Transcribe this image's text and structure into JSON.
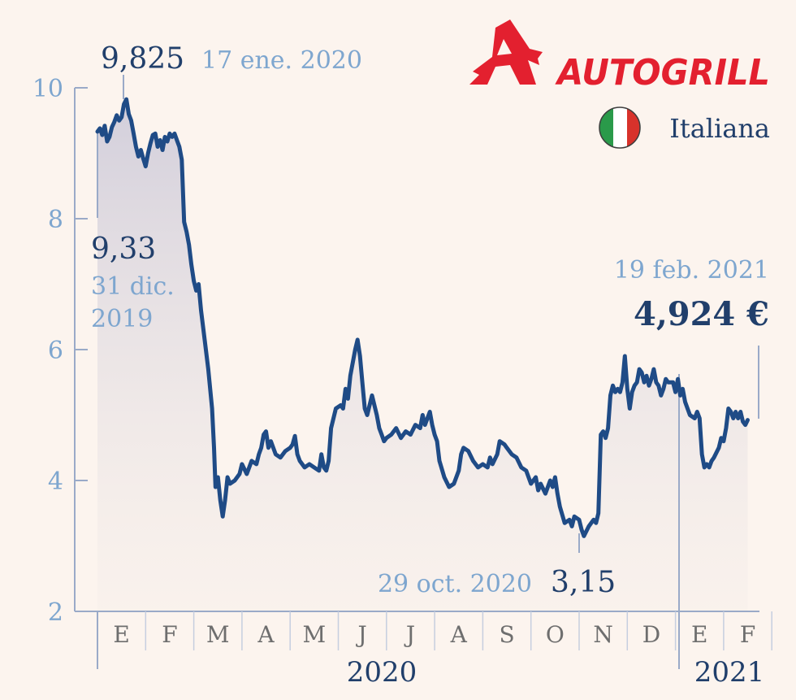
{
  "brand": {
    "name": "AUTOGRILL",
    "country": "Italiana",
    "colors": {
      "brand": "#e3202f",
      "flag": [
        "#2a9a4a",
        "#ffffff",
        "#d8322b"
      ]
    }
  },
  "colors": {
    "line": "#1f4b86",
    "axis": "#9aaac8",
    "dark_text": "#213f6b",
    "light_text": "#7ea6cf",
    "background": "#fcf4ee"
  },
  "chart_data": {
    "type": "line",
    "ylim": [
      2,
      10
    ],
    "yticks": [
      "2",
      "4",
      "6",
      "8",
      "10"
    ],
    "months": [
      "E",
      "F",
      "M",
      "A",
      "M",
      "J",
      "J",
      "A",
      "S",
      "O",
      "N",
      "D",
      "E",
      "F"
    ],
    "years": [
      {
        "label": "2020",
        "months": [
          0,
          11
        ]
      },
      {
        "label": "2021",
        "months": [
          12,
          13
        ]
      }
    ],
    "grid": false,
    "annotations": {
      "start": {
        "value": "9,33",
        "date": [
          "31 dic.",
          "2019"
        ]
      },
      "max": {
        "value": "9,825",
        "date": "17 ene. 2020"
      },
      "min": {
        "value": "3,15",
        "date": "29 oct. 2020"
      },
      "end": {
        "value": "4,924 €",
        "date": "19 feb. 2021"
      }
    },
    "series": [
      {
        "comment_units": "x = month index (0 = start of Jan 2020), y = euros",
        "points": [
          [
            0.0,
            9.33
          ],
          [
            0.05,
            9.38
          ],
          [
            0.1,
            9.28
          ],
          [
            0.15,
            9.42
          ],
          [
            0.2,
            9.18
          ],
          [
            0.25,
            9.25
          ],
          [
            0.3,
            9.4
          ],
          [
            0.35,
            9.48
          ],
          [
            0.4,
            9.58
          ],
          [
            0.45,
            9.5
          ],
          [
            0.5,
            9.55
          ],
          [
            0.55,
            9.75
          ],
          [
            0.6,
            9.825
          ],
          [
            0.65,
            9.6
          ],
          [
            0.7,
            9.5
          ],
          [
            0.75,
            9.3
          ],
          [
            0.8,
            9.1
          ],
          [
            0.85,
            8.95
          ],
          [
            0.9,
            9.05
          ],
          [
            0.95,
            8.92
          ],
          [
            1.0,
            8.8
          ],
          [
            1.05,
            9.0
          ],
          [
            1.1,
            9.15
          ],
          [
            1.15,
            9.28
          ],
          [
            1.2,
            9.3
          ],
          [
            1.25,
            9.1
          ],
          [
            1.3,
            9.2
          ],
          [
            1.35,
            9.05
          ],
          [
            1.4,
            9.25
          ],
          [
            1.45,
            9.18
          ],
          [
            1.5,
            9.3
          ],
          [
            1.55,
            9.25
          ],
          [
            1.6,
            9.3
          ],
          [
            1.65,
            9.2
          ],
          [
            1.7,
            9.1
          ],
          [
            1.75,
            8.9
          ],
          [
            1.8,
            7.95
          ],
          [
            1.85,
            7.8
          ],
          [
            1.9,
            7.6
          ],
          [
            1.95,
            7.3
          ],
          [
            2.0,
            7.05
          ],
          [
            2.05,
            6.9
          ],
          [
            2.1,
            7.0
          ],
          [
            2.15,
            6.6
          ],
          [
            2.2,
            6.3
          ],
          [
            2.3,
            5.7
          ],
          [
            2.38,
            5.1
          ],
          [
            2.42,
            4.5
          ],
          [
            2.45,
            3.9
          ],
          [
            2.5,
            4.05
          ],
          [
            2.55,
            3.7
          ],
          [
            2.6,
            3.45
          ],
          [
            2.65,
            3.7
          ],
          [
            2.7,
            4.05
          ],
          [
            2.75,
            3.95
          ],
          [
            2.85,
            4.0
          ],
          [
            2.95,
            4.1
          ],
          [
            3.0,
            4.25
          ],
          [
            3.1,
            4.1
          ],
          [
            3.2,
            4.3
          ],
          [
            3.3,
            4.25
          ],
          [
            3.35,
            4.4
          ],
          [
            3.4,
            4.5
          ],
          [
            3.45,
            4.7
          ],
          [
            3.5,
            4.75
          ],
          [
            3.55,
            4.5
          ],
          [
            3.6,
            4.6
          ],
          [
            3.7,
            4.4
          ],
          [
            3.8,
            4.35
          ],
          [
            3.9,
            4.45
          ],
          [
            4.0,
            4.5
          ],
          [
            4.05,
            4.55
          ],
          [
            4.1,
            4.68
          ],
          [
            4.15,
            4.4
          ],
          [
            4.2,
            4.3
          ],
          [
            4.3,
            4.2
          ],
          [
            4.4,
            4.25
          ],
          [
            4.5,
            4.2
          ],
          [
            4.6,
            4.15
          ],
          [
            4.65,
            4.4
          ],
          [
            4.7,
            4.2
          ],
          [
            4.75,
            4.15
          ],
          [
            4.8,
            4.3
          ],
          [
            4.85,
            4.8
          ],
          [
            4.95,
            5.1
          ],
          [
            5.05,
            5.15
          ],
          [
            5.1,
            5.1
          ],
          [
            5.15,
            5.4
          ],
          [
            5.2,
            5.25
          ],
          [
            5.25,
            5.6
          ],
          [
            5.3,
            5.8
          ],
          [
            5.35,
            6.0
          ],
          [
            5.4,
            6.15
          ],
          [
            5.45,
            5.9
          ],
          [
            5.5,
            5.5
          ],
          [
            5.55,
            5.1
          ],
          [
            5.6,
            5.0
          ],
          [
            5.65,
            5.15
          ],
          [
            5.7,
            5.3
          ],
          [
            5.8,
            5.0
          ],
          [
            5.85,
            4.8
          ],
          [
            5.9,
            4.7
          ],
          [
            5.95,
            4.6
          ],
          [
            6.0,
            4.65
          ],
          [
            6.1,
            4.7
          ],
          [
            6.2,
            4.8
          ],
          [
            6.3,
            4.65
          ],
          [
            6.4,
            4.75
          ],
          [
            6.5,
            4.7
          ],
          [
            6.6,
            4.85
          ],
          [
            6.7,
            4.8
          ],
          [
            6.75,
            5.0
          ],
          [
            6.8,
            4.85
          ],
          [
            6.9,
            5.05
          ],
          [
            6.95,
            4.85
          ],
          [
            7.0,
            4.7
          ],
          [
            7.05,
            4.6
          ],
          [
            7.1,
            4.3
          ],
          [
            7.2,
            4.05
          ],
          [
            7.3,
            3.9
          ],
          [
            7.4,
            3.95
          ],
          [
            7.5,
            4.15
          ],
          [
            7.55,
            4.4
          ],
          [
            7.6,
            4.5
          ],
          [
            7.7,
            4.45
          ],
          [
            7.8,
            4.3
          ],
          [
            7.9,
            4.2
          ],
          [
            8.0,
            4.25
          ],
          [
            8.1,
            4.2
          ],
          [
            8.15,
            4.35
          ],
          [
            8.2,
            4.25
          ],
          [
            8.3,
            4.4
          ],
          [
            8.35,
            4.6
          ],
          [
            8.45,
            4.55
          ],
          [
            8.5,
            4.5
          ],
          [
            8.6,
            4.4
          ],
          [
            8.7,
            4.35
          ],
          [
            8.8,
            4.2
          ],
          [
            8.9,
            4.15
          ],
          [
            9.0,
            3.95
          ],
          [
            9.1,
            4.05
          ],
          [
            9.15,
            3.85
          ],
          [
            9.2,
            3.95
          ],
          [
            9.3,
            3.8
          ],
          [
            9.4,
            4.0
          ],
          [
            9.45,
            3.9
          ],
          [
            9.5,
            4.05
          ],
          [
            9.55,
            3.8
          ],
          [
            9.6,
            3.6
          ],
          [
            9.7,
            3.35
          ],
          [
            9.8,
            3.4
          ],
          [
            9.85,
            3.3
          ],
          [
            9.9,
            3.45
          ],
          [
            10.0,
            3.4
          ],
          [
            10.05,
            3.25
          ],
          [
            10.1,
            3.15
          ],
          [
            10.2,
            3.3
          ],
          [
            10.3,
            3.4
          ],
          [
            10.35,
            3.35
          ],
          [
            10.4,
            3.5
          ],
          [
            10.45,
            4.7
          ],
          [
            10.5,
            4.75
          ],
          [
            10.55,
            4.65
          ],
          [
            10.6,
            4.8
          ],
          [
            10.65,
            5.3
          ],
          [
            10.7,
            5.45
          ],
          [
            10.75,
            5.35
          ],
          [
            10.8,
            5.4
          ],
          [
            10.85,
            5.35
          ],
          [
            10.9,
            5.5
          ],
          [
            10.95,
            5.9
          ],
          [
            11.0,
            5.4
          ],
          [
            11.05,
            5.1
          ],
          [
            11.1,
            5.35
          ],
          [
            11.15,
            5.45
          ],
          [
            11.2,
            5.5
          ],
          [
            11.25,
            5.7
          ],
          [
            11.3,
            5.65
          ],
          [
            11.35,
            5.5
          ],
          [
            11.4,
            5.6
          ],
          [
            11.45,
            5.45
          ],
          [
            11.5,
            5.55
          ],
          [
            11.55,
            5.7
          ],
          [
            11.6,
            5.5
          ],
          [
            11.65,
            5.45
          ],
          [
            11.7,
            5.3
          ],
          [
            11.75,
            5.4
          ],
          [
            11.8,
            5.55
          ],
          [
            11.85,
            5.5
          ],
          [
            11.9,
            5.5
          ],
          [
            11.95,
            5.5
          ],
          [
            12.0,
            5.35
          ],
          [
            12.05,
            5.55
          ],
          [
            12.1,
            5.3
          ],
          [
            12.15,
            5.4
          ],
          [
            12.2,
            5.2
          ],
          [
            12.3,
            5.0
          ],
          [
            12.4,
            4.95
          ],
          [
            12.45,
            5.05
          ],
          [
            12.5,
            4.95
          ],
          [
            12.55,
            4.4
          ],
          [
            12.6,
            4.2
          ],
          [
            12.65,
            4.25
          ],
          [
            12.7,
            4.2
          ],
          [
            12.75,
            4.3
          ],
          [
            12.8,
            4.35
          ],
          [
            12.9,
            4.5
          ],
          [
            12.95,
            4.65
          ],
          [
            13.0,
            4.6
          ],
          [
            13.05,
            4.8
          ],
          [
            13.1,
            5.1
          ],
          [
            13.15,
            5.05
          ],
          [
            13.2,
            4.95
          ],
          [
            13.25,
            5.05
          ],
          [
            13.3,
            4.95
          ],
          [
            13.35,
            5.05
          ],
          [
            13.4,
            4.9
          ],
          [
            13.45,
            4.85
          ],
          [
            13.5,
            4.924
          ]
        ]
      }
    ]
  }
}
